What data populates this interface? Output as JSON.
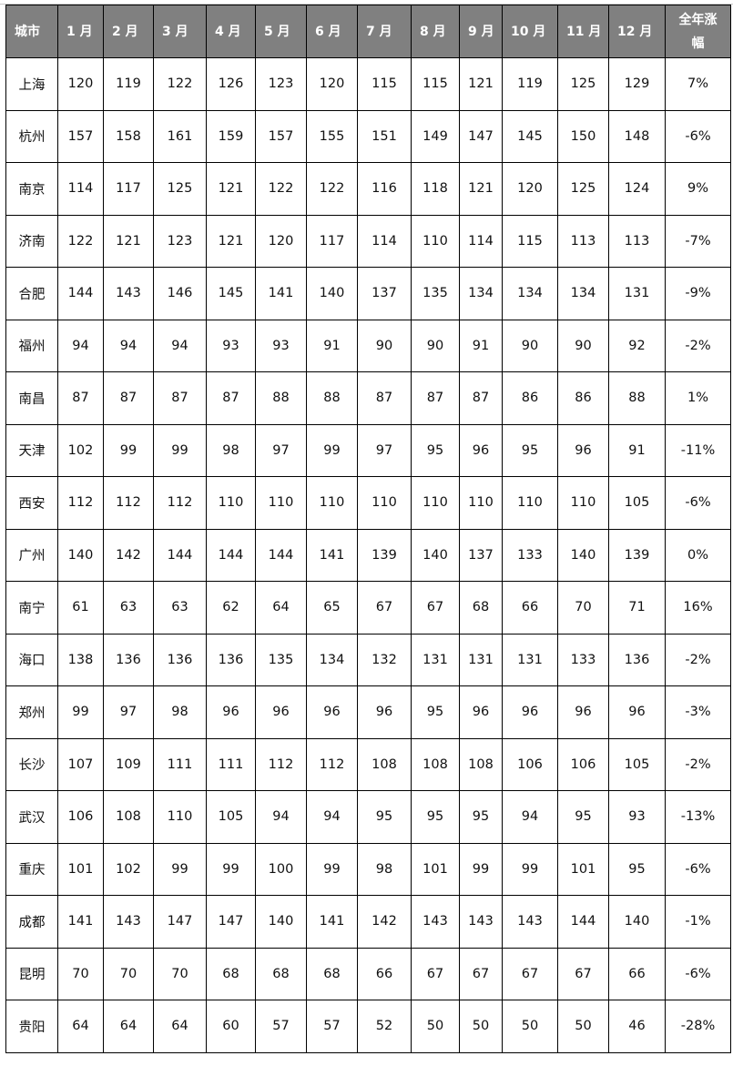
{
  "table": {
    "headers": [
      "城市",
      "1 月",
      "2 月",
      "3 月",
      "4 月",
      "5 月",
      "6 月",
      "7 月",
      "8 月",
      "9 月",
      "10 月",
      "11 月",
      "12 月",
      "全年涨幅"
    ],
    "rows": [
      [
        "上海",
        "120",
        "119",
        "122",
        "126",
        "123",
        "120",
        "115",
        "115",
        "121",
        "119",
        "125",
        "129",
        "7%"
      ],
      [
        "杭州",
        "157",
        "158",
        "161",
        "159",
        "157",
        "155",
        "151",
        "149",
        "147",
        "145",
        "150",
        "148",
        "-6%"
      ],
      [
        "南京",
        "114",
        "117",
        "125",
        "121",
        "122",
        "122",
        "116",
        "118",
        "121",
        "120",
        "125",
        "124",
        "9%"
      ],
      [
        "济南",
        "122",
        "121",
        "123",
        "121",
        "120",
        "117",
        "114",
        "110",
        "114",
        "115",
        "113",
        "113",
        "-7%"
      ],
      [
        "合肥",
        "144",
        "143",
        "146",
        "145",
        "141",
        "140",
        "137",
        "135",
        "134",
        "134",
        "134",
        "131",
        "-9%"
      ],
      [
        "福州",
        "94",
        "94",
        "94",
        "93",
        "93",
        "91",
        "90",
        "90",
        "91",
        "90",
        "90",
        "92",
        "-2%"
      ],
      [
        "南昌",
        "87",
        "87",
        "87",
        "87",
        "88",
        "88",
        "87",
        "87",
        "87",
        "86",
        "86",
        "88",
        "1%"
      ],
      [
        "天津",
        "102",
        "99",
        "99",
        "98",
        "97",
        "99",
        "97",
        "95",
        "96",
        "95",
        "96",
        "91",
        "-11%"
      ],
      [
        "西安",
        "112",
        "112",
        "112",
        "110",
        "110",
        "110",
        "110",
        "110",
        "110",
        "110",
        "110",
        "105",
        "-6%"
      ],
      [
        "广州",
        "140",
        "142",
        "144",
        "144",
        "144",
        "141",
        "139",
        "140",
        "137",
        "133",
        "140",
        "139",
        "0%"
      ],
      [
        "南宁",
        "61",
        "63",
        "63",
        "62",
        "64",
        "65",
        "67",
        "67",
        "68",
        "66",
        "70",
        "71",
        "16%"
      ],
      [
        "海口",
        "138",
        "136",
        "136",
        "136",
        "135",
        "134",
        "132",
        "131",
        "131",
        "131",
        "133",
        "136",
        "-2%"
      ],
      [
        "郑州",
        "99",
        "97",
        "98",
        "96",
        "96",
        "96",
        "96",
        "95",
        "96",
        "96",
        "96",
        "96",
        "-3%"
      ],
      [
        "长沙",
        "107",
        "109",
        "111",
        "111",
        "112",
        "112",
        "108",
        "108",
        "108",
        "106",
        "106",
        "105",
        "-2%"
      ],
      [
        "武汉",
        "106",
        "108",
        "110",
        "105",
        "94",
        "94",
        "95",
        "95",
        "95",
        "94",
        "95",
        "93",
        "-13%"
      ],
      [
        "重庆",
        "101",
        "102",
        "99",
        "99",
        "100",
        "99",
        "98",
        "101",
        "99",
        "99",
        "101",
        "95",
        "-6%"
      ],
      [
        "成都",
        "141",
        "143",
        "147",
        "147",
        "140",
        "141",
        "142",
        "143",
        "143",
        "143",
        "144",
        "140",
        "-1%"
      ],
      [
        "昆明",
        "70",
        "70",
        "70",
        "68",
        "68",
        "68",
        "66",
        "67",
        "67",
        "67",
        "67",
        "66",
        "-6%"
      ],
      [
        "贵阳",
        "64",
        "64",
        "64",
        "60",
        "57",
        "57",
        "52",
        "50",
        "50",
        "50",
        "50",
        "46",
        "-28%"
      ]
    ]
  },
  "colors": {
    "header_bg": "#808080",
    "header_text": "#ffffff",
    "border": "#000000"
  }
}
